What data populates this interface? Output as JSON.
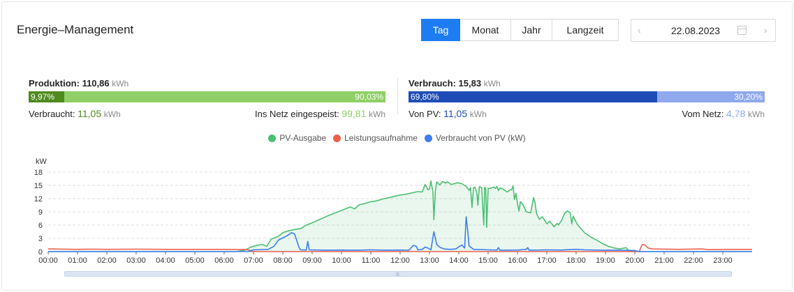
{
  "header": {
    "title": "Energie–Management",
    "tabs": [
      {
        "label": "Tag",
        "active": true
      },
      {
        "label": "Monat",
        "active": false
      },
      {
        "label": "Jahr",
        "active": false
      },
      {
        "label": "Langzeit",
        "active": false
      }
    ],
    "date": "22.08.2023",
    "prev_icon": "chevron-left-icon",
    "next_icon": "chevron-right-icon",
    "calendar_icon": "calendar-icon"
  },
  "production": {
    "label": "Produktion:",
    "value": "110,86",
    "unit": "kWh",
    "self_pct": "9,97%",
    "self_fraction": 0.0997,
    "export_pct": "90,03%",
    "consumed_label": "Verbraucht:",
    "consumed_value": "11,05",
    "consumed_unit": "kWh",
    "export_label": "Ins Netz eingespeist:",
    "export_value": "99,81",
    "export_unit": "kWh",
    "color_self": "#4f8a1e",
    "color_export": "#8fcf66"
  },
  "consumption": {
    "label": "Verbrauch:",
    "value": "15,83",
    "unit": "kWh",
    "pv_pct": "69,80%",
    "pv_fraction": 0.698,
    "grid_pct": "30,20%",
    "from_pv_label": "Von PV:",
    "from_pv_value": "11,05",
    "from_pv_unit": "kWh",
    "from_grid_label": "Vom Netz:",
    "from_grid_value": "4,78",
    "from_grid_unit": "kWh",
    "color_pv": "#1e4db7",
    "color_grid": "#8fa8ee"
  },
  "chart_data": {
    "type": "line",
    "ylabel": "kW",
    "ylim": [
      0,
      18
    ],
    "yticks": [
      0,
      3,
      6,
      9,
      12,
      15,
      18
    ],
    "x_ticks": [
      "00:00",
      "01:00",
      "02:00",
      "03:00",
      "04:00",
      "05:00",
      "06:00",
      "07:00",
      "08:00",
      "09:00",
      "10:00",
      "11:00",
      "12:00",
      "13:00",
      "14:00",
      "15:00",
      "16:00",
      "17:00",
      "18:00",
      "19:00",
      "20:00",
      "21:00",
      "22:00",
      "23:00"
    ],
    "x_range_hours": [
      0,
      24
    ],
    "grid": true,
    "legend_position": "top-center",
    "series": [
      {
        "name": "PV-Ausgabe",
        "color": "#4cbf73",
        "area": true,
        "points": [
          [
            0,
            0
          ],
          [
            6.4,
            0
          ],
          [
            6.7,
            0.3
          ],
          [
            6.9,
            1
          ],
          [
            7.1,
            1.4
          ],
          [
            7.3,
            1.6
          ],
          [
            7.45,
            1.2
          ],
          [
            7.6,
            2.8
          ],
          [
            7.8,
            3.3
          ],
          [
            7.9,
            3.7
          ],
          [
            8.0,
            4.3
          ],
          [
            8.2,
            4.7
          ],
          [
            8.4,
            5.0
          ],
          [
            8.6,
            5.2
          ],
          [
            8.8,
            6.0
          ],
          [
            9.0,
            6.5
          ],
          [
            9.2,
            7.1
          ],
          [
            9.5,
            8.0
          ],
          [
            9.8,
            8.8
          ],
          [
            10.1,
            9.6
          ],
          [
            10.3,
            10.1
          ],
          [
            10.45,
            9.7
          ],
          [
            10.6,
            10.6
          ],
          [
            10.8,
            10.9
          ],
          [
            11.0,
            11.3
          ],
          [
            11.2,
            11.5
          ],
          [
            11.4,
            11.9
          ],
          [
            11.6,
            12.2
          ],
          [
            11.8,
            12.5
          ],
          [
            12.0,
            12.8
          ],
          [
            12.2,
            13.0
          ],
          [
            12.4,
            13.3
          ],
          [
            12.6,
            13.6
          ],
          [
            12.75,
            13.5
          ],
          [
            12.85,
            15.2
          ],
          [
            12.95,
            14.0
          ],
          [
            13.0,
            14.2
          ],
          [
            13.05,
            16.0
          ],
          [
            13.12,
            13.5
          ],
          [
            13.15,
            7.2
          ],
          [
            13.2,
            13.8
          ],
          [
            13.25,
            15.8
          ],
          [
            13.35,
            15.1
          ],
          [
            13.45,
            15.9
          ],
          [
            13.55,
            15.5
          ],
          [
            13.6,
            15.8
          ],
          [
            13.75,
            15.2
          ],
          [
            13.85,
            15.4
          ],
          [
            13.95,
            15.6
          ],
          [
            14.1,
            15.4
          ],
          [
            14.25,
            14.8
          ],
          [
            14.35,
            13.9
          ],
          [
            14.4,
            14.5
          ],
          [
            14.45,
            10.0
          ],
          [
            14.5,
            14.4
          ],
          [
            14.55,
            14.6
          ],
          [
            14.62,
            13.2
          ],
          [
            14.65,
            10.5
          ],
          [
            14.7,
            14.7
          ],
          [
            14.78,
            14.5
          ],
          [
            14.85,
            6.0
          ],
          [
            14.88,
            14.6
          ],
          [
            14.92,
            14.2
          ],
          [
            14.95,
            5.5
          ],
          [
            15.0,
            14.3
          ],
          [
            15.1,
            14.4
          ],
          [
            15.2,
            14.6
          ],
          [
            15.25,
            14.3
          ],
          [
            15.3,
            14.8
          ],
          [
            15.35,
            13.8
          ],
          [
            15.4,
            14.4
          ],
          [
            15.5,
            14.2
          ],
          [
            15.65,
            13.5
          ],
          [
            15.75,
            14.0
          ],
          [
            15.8,
            14.0
          ],
          [
            15.85,
            14.9
          ],
          [
            15.9,
            11.8
          ],
          [
            15.95,
            13.2
          ],
          [
            16.0,
            11.0
          ],
          [
            16.05,
            9.2
          ],
          [
            16.1,
            11.3
          ],
          [
            16.2,
            10.5
          ],
          [
            16.3,
            9.0
          ],
          [
            16.45,
            8.8
          ],
          [
            16.55,
            12.2
          ],
          [
            16.6,
            11.1
          ],
          [
            16.65,
            8.6
          ],
          [
            16.75,
            7.3
          ],
          [
            16.85,
            7.9
          ],
          [
            17.0,
            6.3
          ],
          [
            17.1,
            6.9
          ],
          [
            17.25,
            5.6
          ],
          [
            17.35,
            6.4
          ],
          [
            17.4,
            6.1
          ],
          [
            17.5,
            7.0
          ],
          [
            17.6,
            8.6
          ],
          [
            17.7,
            9.2
          ],
          [
            17.8,
            8.8
          ],
          [
            17.85,
            6.3
          ],
          [
            17.9,
            8.0
          ],
          [
            17.95,
            7.3
          ],
          [
            18.05,
            6.1
          ],
          [
            18.15,
            5.3
          ],
          [
            18.3,
            4.2
          ],
          [
            18.5,
            3.3
          ],
          [
            18.7,
            2.6
          ],
          [
            18.9,
            1.8
          ],
          [
            19.1,
            1.2
          ],
          [
            19.3,
            0.8
          ],
          [
            19.5,
            0.6
          ],
          [
            19.7,
            0.9
          ],
          [
            19.8,
            0.2
          ],
          [
            20.0,
            0.1
          ],
          [
            20.2,
            0
          ],
          [
            24,
            0
          ]
        ]
      },
      {
        "name": "Leistungsaufnahme",
        "color": "#e8604c",
        "area": false,
        "points": [
          [
            0,
            0.6
          ],
          [
            1,
            0.5
          ],
          [
            1.5,
            0.55
          ],
          [
            2,
            0.5
          ],
          [
            3,
            0.55
          ],
          [
            4,
            0.5
          ],
          [
            5,
            0.5
          ],
          [
            6,
            0.5
          ],
          [
            6.8,
            0.45
          ],
          [
            7.0,
            0
          ],
          [
            20.15,
            0
          ],
          [
            20.25,
            1.6
          ],
          [
            20.35,
            1.5
          ],
          [
            20.45,
            0.8
          ],
          [
            20.6,
            0.6
          ],
          [
            21.5,
            0.5
          ],
          [
            22.3,
            0.6
          ],
          [
            22.5,
            0.45
          ],
          [
            23.5,
            0.5
          ],
          [
            24,
            0.5
          ]
        ]
      },
      {
        "name": "Verbraucht von PV (kW)",
        "color": "#3e7cf0",
        "area": false,
        "points": [
          [
            0,
            0
          ],
          [
            6.8,
            0
          ],
          [
            7.0,
            0.4
          ],
          [
            7.5,
            0.5
          ],
          [
            7.7,
            1.2
          ],
          [
            7.85,
            2.6
          ],
          [
            8.0,
            3.1
          ],
          [
            8.15,
            3.6
          ],
          [
            8.3,
            4.3
          ],
          [
            8.4,
            4.0
          ],
          [
            8.5,
            2.0
          ],
          [
            8.55,
            1.0
          ],
          [
            8.6,
            0.4
          ],
          [
            8.8,
            0.35
          ],
          [
            8.85,
            2.3
          ],
          [
            8.9,
            0.4
          ],
          [
            9.5,
            0.3
          ],
          [
            10.0,
            0.35
          ],
          [
            10.5,
            0.3
          ],
          [
            11.0,
            0.4
          ],
          [
            11.5,
            0.3
          ],
          [
            12.0,
            0.35
          ],
          [
            12.3,
            0.3
          ],
          [
            12.45,
            1.4
          ],
          [
            12.55,
            1.2
          ],
          [
            12.6,
            0.4
          ],
          [
            12.75,
            0.5
          ],
          [
            12.85,
            1.0
          ],
          [
            12.95,
            0.8
          ],
          [
            13.05,
            0.4
          ],
          [
            13.15,
            4.5
          ],
          [
            13.25,
            1.6
          ],
          [
            13.35,
            1.0
          ],
          [
            13.5,
            0.6
          ],
          [
            13.7,
            0.5
          ],
          [
            13.9,
            0.6
          ],
          [
            14.1,
            1.5
          ],
          [
            14.2,
            0.8
          ],
          [
            14.25,
            7.9
          ],
          [
            14.3,
            5.0
          ],
          [
            14.35,
            1.3
          ],
          [
            14.5,
            0.5
          ],
          [
            15.0,
            0.4
          ],
          [
            15.3,
            0.35
          ],
          [
            15.35,
            0.9
          ],
          [
            15.4,
            0.3
          ],
          [
            16.0,
            0.35
          ],
          [
            16.3,
            0.5
          ],
          [
            16.35,
            0.9
          ],
          [
            16.4,
            0.3
          ],
          [
            17.0,
            0.4
          ],
          [
            17.5,
            0.35
          ],
          [
            18.0,
            0.5
          ],
          [
            18.3,
            0.4
          ],
          [
            19.0,
            0.3
          ],
          [
            19.5,
            0.3
          ],
          [
            20.0,
            0.25
          ],
          [
            20.15,
            0
          ],
          [
            24,
            0
          ]
        ]
      }
    ]
  }
}
